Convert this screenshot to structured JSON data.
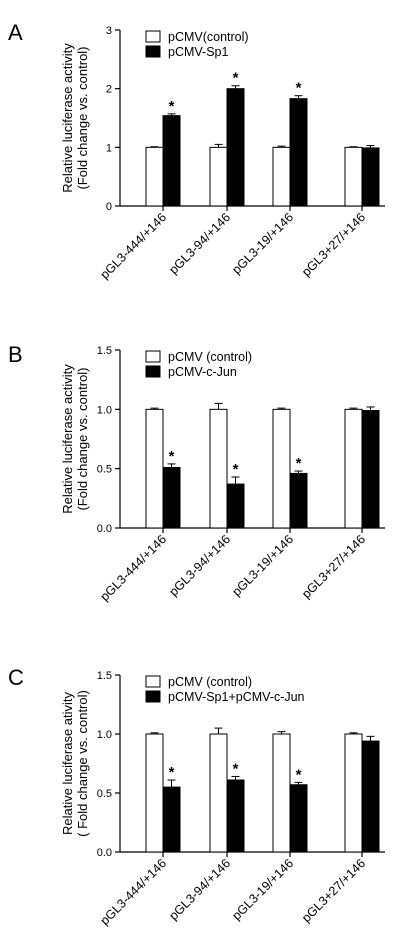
{
  "figure": {
    "panels": [
      {
        "letter": "A"
      },
      {
        "letter": "B"
      },
      {
        "letter": "C"
      }
    ]
  },
  "chart_data": [
    {
      "type": "bar",
      "panel": "A",
      "ylabel": [
        "Relative luciferase activity",
        "(Fold change vs. control)"
      ],
      "ylim": [
        0,
        3
      ],
      "yticks": [
        "0",
        "1",
        "2",
        "3"
      ],
      "categories": [
        "pGL3-444/+146",
        "pGL3-94/+146",
        "pGL3-19/+146",
        "pGL3+27/+146"
      ],
      "series": [
        {
          "name": "pCMV(control)",
          "color": "#ffffff",
          "values": [
            1.0,
            1.0,
            1.0,
            1.0
          ],
          "errors": [
            0.01,
            0.05,
            0.02,
            0.01
          ],
          "significant": [
            false,
            false,
            false,
            false
          ]
        },
        {
          "name": "pCMV-Sp1",
          "color": "#000000",
          "values": [
            1.54,
            2.0,
            1.83,
            0.99
          ],
          "errors": [
            0.03,
            0.05,
            0.05,
            0.04
          ],
          "significant": [
            true,
            true,
            true,
            false
          ]
        }
      ],
      "significance_marker": "*",
      "legend_position": "top-left"
    },
    {
      "type": "bar",
      "panel": "B",
      "ylabel": [
        "Relative luciferase activity",
        "(Fold change vs. control)"
      ],
      "ylim": [
        0,
        1.5
      ],
      "yticks": [
        "0.0",
        "0.5",
        "1.0",
        "1.5"
      ],
      "categories": [
        "pGL3-444/+146",
        "pGL3-94/+146",
        "pGL3-19/+146",
        "pGL3+27/+146"
      ],
      "series": [
        {
          "name": "pCMV (control)",
          "color": "#ffffff",
          "values": [
            1.0,
            1.0,
            1.0,
            1.0
          ],
          "errors": [
            0.01,
            0.05,
            0.01,
            0.01
          ],
          "significant": [
            false,
            false,
            false,
            false
          ]
        },
        {
          "name": "pCMV-c-Jun",
          "color": "#000000",
          "values": [
            0.51,
            0.37,
            0.46,
            0.99
          ],
          "errors": [
            0.03,
            0.06,
            0.02,
            0.03
          ],
          "significant": [
            true,
            true,
            true,
            false
          ]
        }
      ],
      "significance_marker": "*",
      "legend_position": "top-left"
    },
    {
      "type": "bar",
      "panel": "C",
      "ylabel": [
        "Relative luciferase ativity",
        "( Fold change vs. control)"
      ],
      "ylim": [
        0,
        1.5
      ],
      "yticks": [
        "0.0",
        "0.5",
        "1.0",
        "1.5"
      ],
      "categories": [
        "pGL3-444/+146",
        "pGL3-94/+146",
        "pGL3-19/+146",
        "pGL3+27/+146"
      ],
      "series": [
        {
          "name": "pCMV (control)",
          "color": "#ffffff",
          "values": [
            1.0,
            1.0,
            1.0,
            1.0
          ],
          "errors": [
            0.01,
            0.05,
            0.02,
            0.01
          ],
          "significant": [
            false,
            false,
            false,
            false
          ]
        },
        {
          "name": "pCMV-Sp1+pCMV-c-Jun",
          "color": "#000000",
          "values": [
            0.55,
            0.61,
            0.57,
            0.94
          ],
          "errors": [
            0.06,
            0.03,
            0.02,
            0.04
          ],
          "significant": [
            true,
            true,
            true,
            false
          ]
        }
      ],
      "significance_marker": "*",
      "legend_position": "top-left"
    }
  ]
}
